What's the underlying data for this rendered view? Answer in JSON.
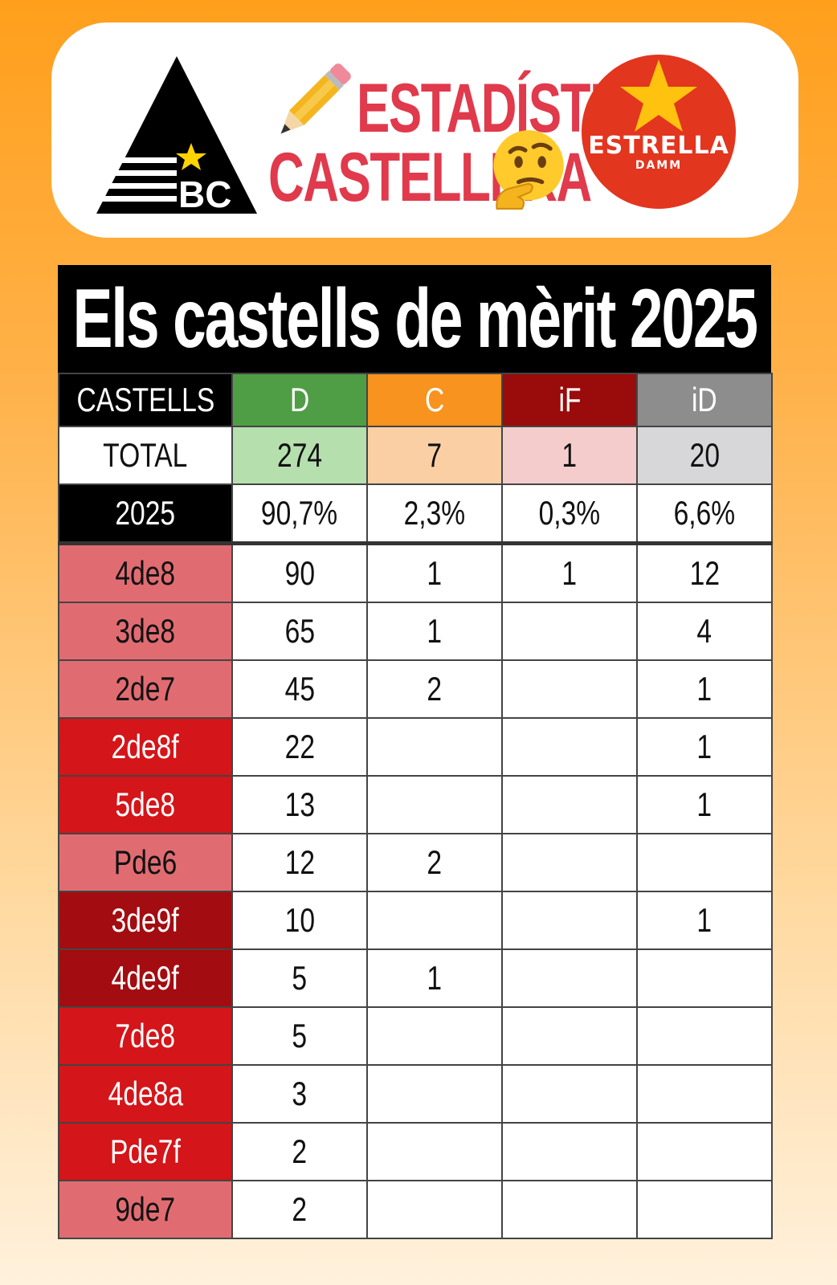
{
  "header": {
    "logo_text": "BC",
    "title_line1": "ESTADÍSTICA",
    "title_line2": "CASTELLERA",
    "sponsor_name": "ESTRELLA",
    "sponsor_sub": "DAMM",
    "icons": [
      "bc-triangle-logo",
      "pencil-icon",
      "thinking-face-icon",
      "estrella-damm-logo"
    ]
  },
  "table": {
    "title": "Els castells de mèrit 2025",
    "headers": [
      "CASTELLS",
      "D",
      "C",
      "iF",
      "iD"
    ],
    "header_colors": {
      "D": "#4f9e46",
      "C": "#f7931e",
      "iF": "#9a0b0b",
      "iD": "#8d8d8d"
    },
    "total": {
      "label": "TOTAL",
      "values": [
        "274",
        "7",
        "1",
        "20"
      ]
    },
    "year": {
      "label": "2025",
      "values": [
        "90,7%",
        "2,3%",
        "0,3%",
        "6,6%"
      ]
    },
    "rows": [
      {
        "name": "4de8",
        "tone": "light",
        "values": [
          "90",
          "1",
          "1",
          "12"
        ]
      },
      {
        "name": "3de8",
        "tone": "light",
        "values": [
          "65",
          "1",
          "",
          "4"
        ]
      },
      {
        "name": "2de7",
        "tone": "light",
        "values": [
          "45",
          "2",
          "",
          "1"
        ]
      },
      {
        "name": "2de8f",
        "tone": "mid",
        "values": [
          "22",
          "",
          "",
          "1"
        ]
      },
      {
        "name": "5de8",
        "tone": "mid",
        "values": [
          "13",
          "",
          "",
          "1"
        ]
      },
      {
        "name": "Pde6",
        "tone": "light",
        "values": [
          "12",
          "2",
          "",
          ""
        ]
      },
      {
        "name": "3de9f",
        "tone": "dark",
        "values": [
          "10",
          "",
          "",
          "1"
        ]
      },
      {
        "name": "4de9f",
        "tone": "dark",
        "values": [
          "5",
          "1",
          "",
          ""
        ]
      },
      {
        "name": "7de8",
        "tone": "mid",
        "values": [
          "5",
          "",
          "",
          ""
        ]
      },
      {
        "name": "4de8a",
        "tone": "mid",
        "values": [
          "3",
          "",
          "",
          ""
        ]
      },
      {
        "name": "Pde7f",
        "tone": "mid",
        "values": [
          "2",
          "",
          "",
          ""
        ]
      },
      {
        "name": "9de7",
        "tone": "light",
        "values": [
          "2",
          "",
          "",
          ""
        ]
      }
    ]
  }
}
